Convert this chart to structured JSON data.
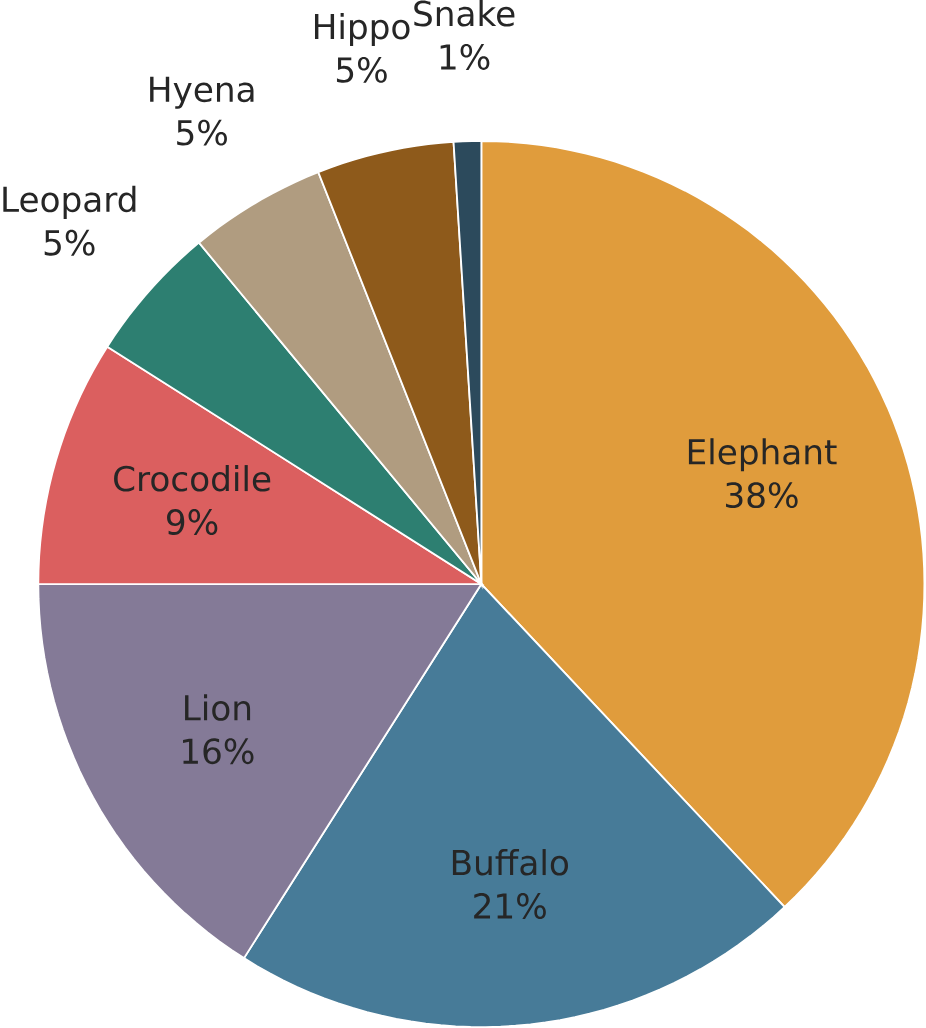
{
  "chart_data": {
    "type": "pie",
    "categories": [
      "Elephant",
      "Buffalo",
      "Lion",
      "Crocodile",
      "Leopard",
      "Hyena",
      "Hippo",
      "Snake"
    ],
    "values": [
      38,
      21,
      16,
      9,
      5,
      5,
      5,
      1
    ],
    "colors": [
      "#e09c3c",
      "#477b98",
      "#847a97",
      "#db5f5f",
      "#2d7f71",
      "#b09c80",
      "#8e5a1b",
      "#2c4a5c"
    ],
    "value_labels": [
      "38%",
      "21%",
      "16%",
      "9%",
      "5%",
      "5%",
      "5%",
      "1%"
    ]
  }
}
